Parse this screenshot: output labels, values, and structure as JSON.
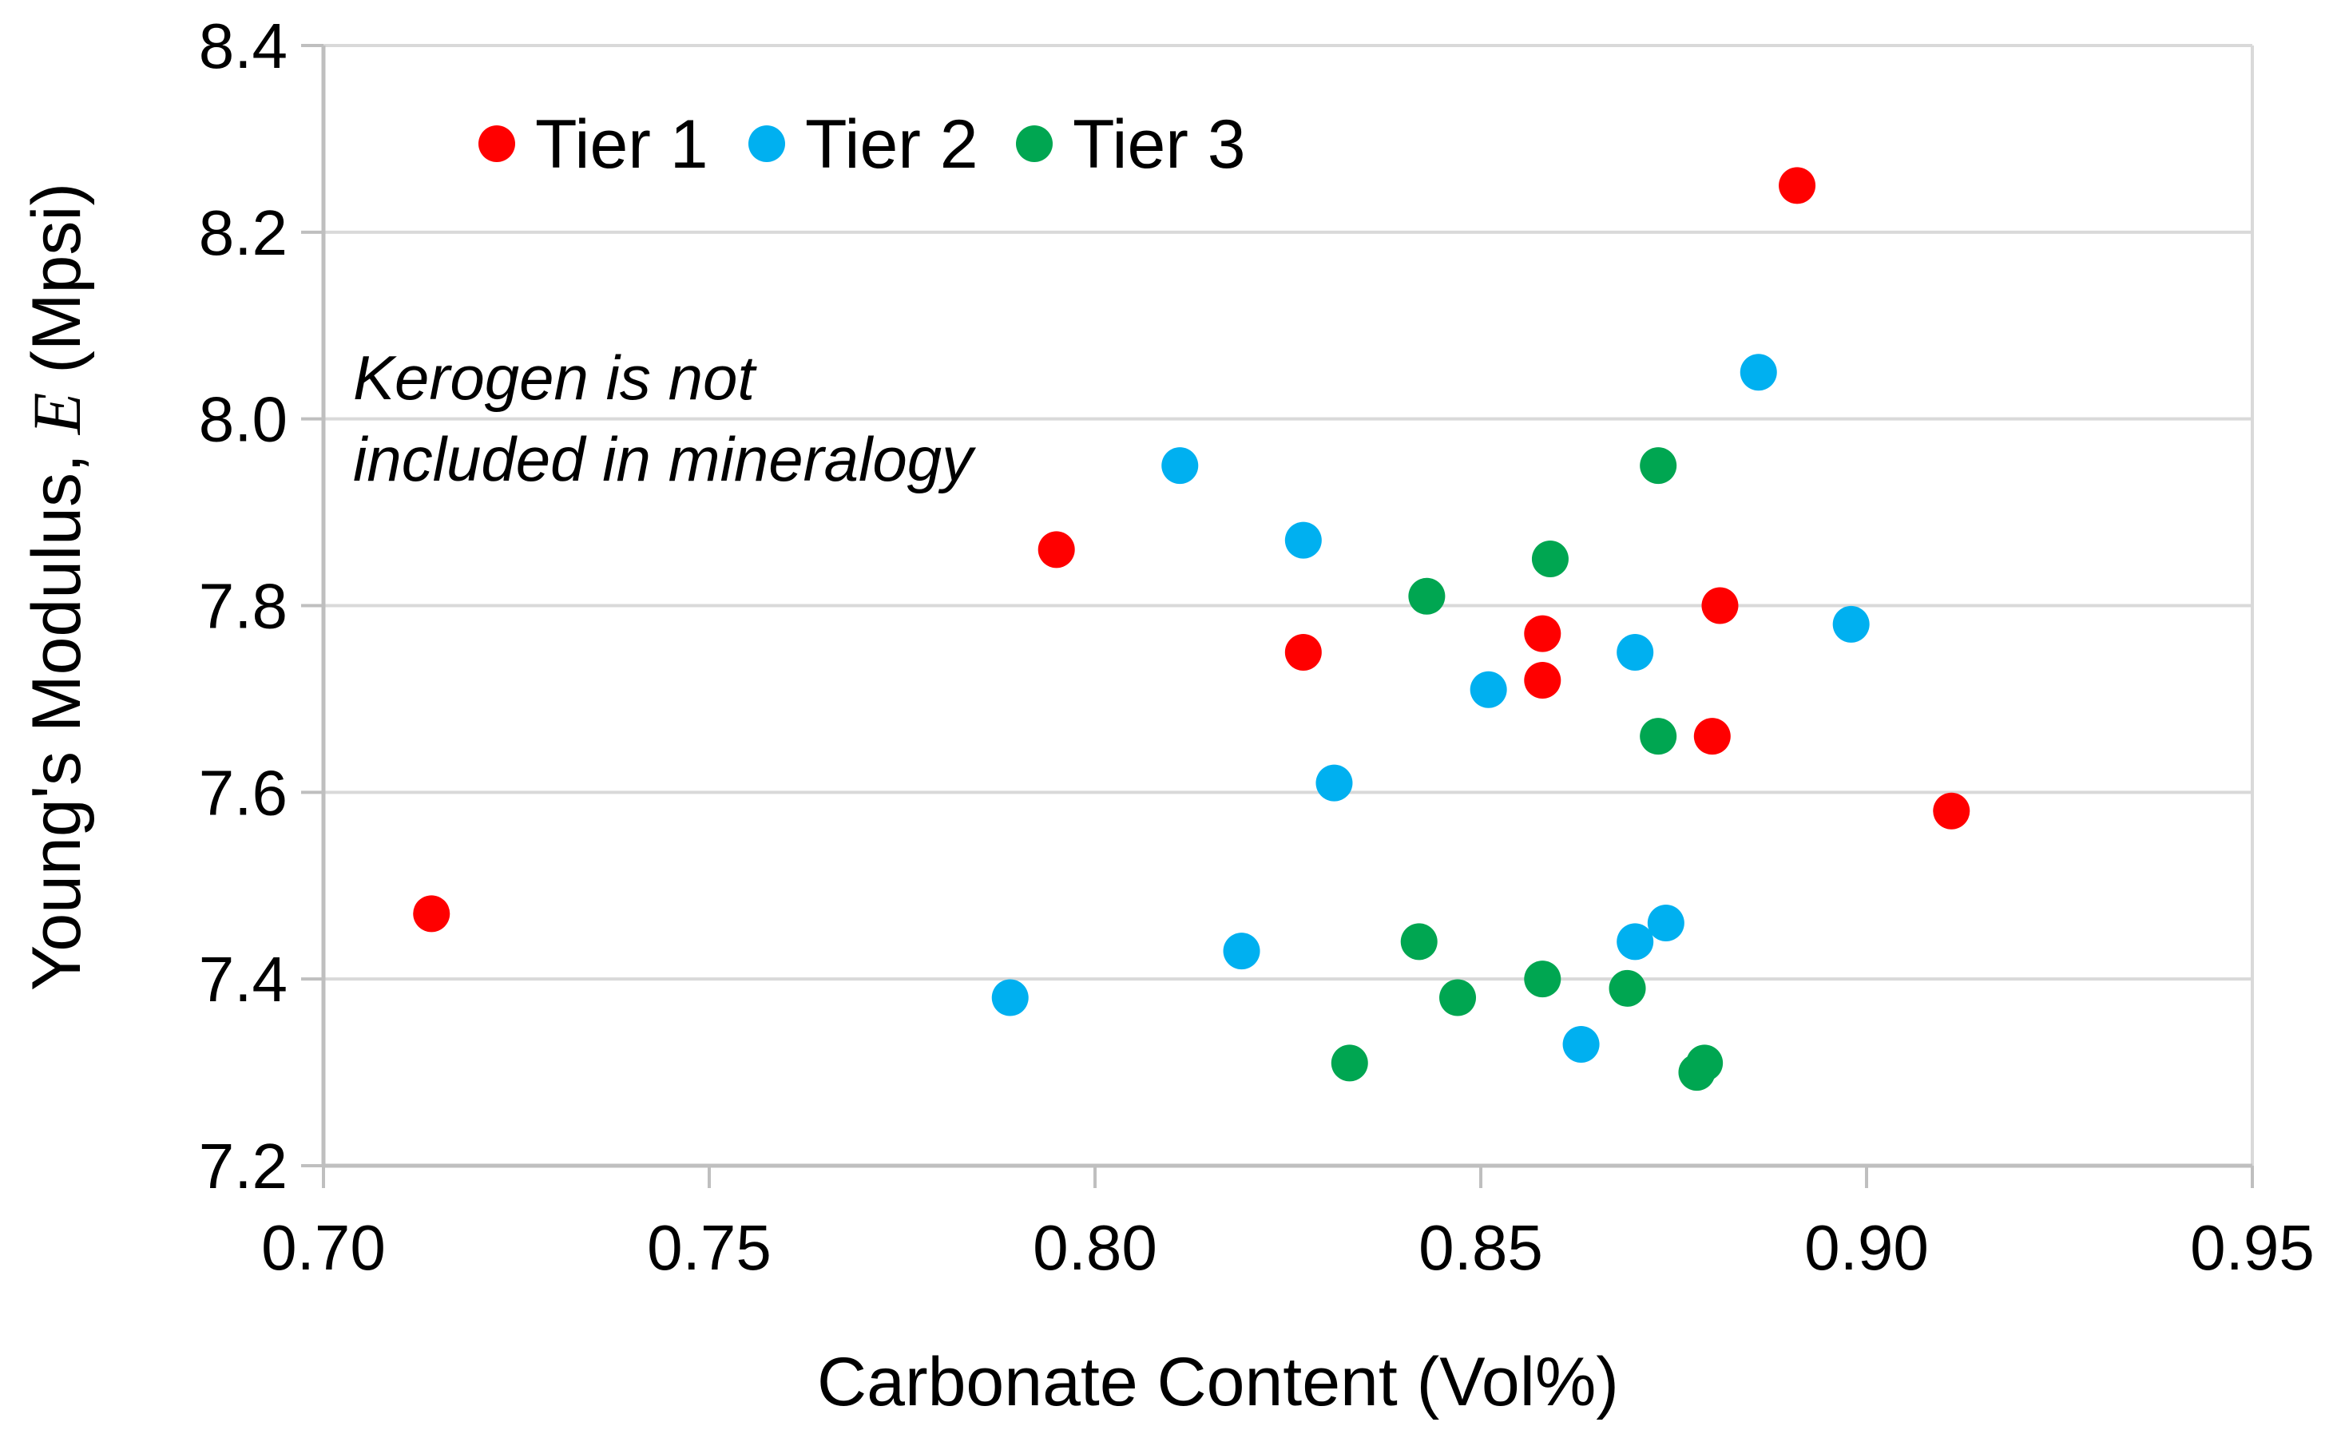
{
  "chart_data": {
    "type": "scatter",
    "title": "",
    "xlabel": "Carbonate Content (Vol%)",
    "ylabel_main": "Young's Modulus,",
    "ylabel_symbol": "E",
    "ylabel_unit": "(Mpsi)",
    "xlim": [
      0.7,
      0.95
    ],
    "ylim": [
      7.2,
      8.4
    ],
    "x_ticks": [
      "0.70",
      "0.75",
      "0.80",
      "0.85",
      "0.90",
      "0.95"
    ],
    "y_ticks": [
      "7.2",
      "7.4",
      "7.6",
      "7.8",
      "8.0",
      "8.2",
      "8.4"
    ],
    "grid": "horizontal",
    "legend_position": "top-left",
    "annotation": [
      "Kerogen is not",
      "included in mineralogy"
    ],
    "series": [
      {
        "name": "Tier 1",
        "color": "#ff0000",
        "x": [
          0.714,
          0.795,
          0.827,
          0.858,
          0.858,
          0.88,
          0.881,
          0.891,
          0.911
        ],
        "y": [
          7.47,
          7.86,
          7.75,
          7.77,
          7.72,
          7.66,
          7.8,
          8.25,
          7.58
        ]
      },
      {
        "name": "Tier 2",
        "color": "#00b0f0",
        "x": [
          0.789,
          0.811,
          0.819,
          0.827,
          0.831,
          0.851,
          0.863,
          0.87,
          0.87,
          0.874,
          0.886,
          0.898
        ],
        "y": [
          7.38,
          7.95,
          7.43,
          7.87,
          7.61,
          7.71,
          7.33,
          7.44,
          7.75,
          7.46,
          8.05,
          7.78
        ]
      },
      {
        "name": "Tier 3",
        "color": "#00a651",
        "x": [
          0.833,
          0.842,
          0.843,
          0.847,
          0.858,
          0.859,
          0.869,
          0.873,
          0.873,
          0.878,
          0.879
        ],
        "y": [
          7.31,
          7.44,
          7.81,
          7.38,
          7.4,
          7.85,
          7.39,
          7.95,
          7.66,
          7.3,
          7.31
        ]
      }
    ]
  }
}
